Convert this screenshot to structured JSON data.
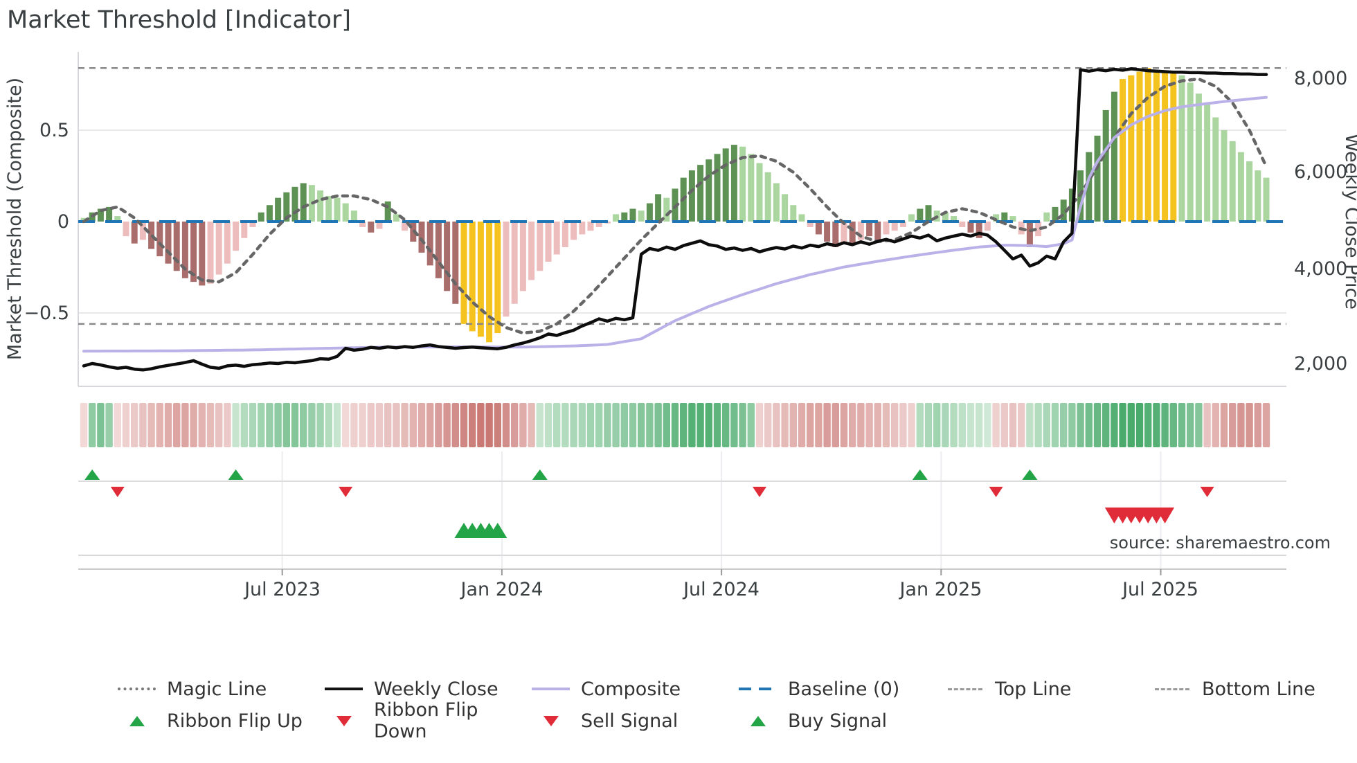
{
  "title": "Market Threshold [Indicator]",
  "source": "source: sharemaestro.com",
  "axes": {
    "left_title": "Market Threshold (Composite)",
    "right_title": "Weekly Close Price",
    "left_ticks": [
      {
        "value": 0.5,
        "label": "0.5"
      },
      {
        "value": 0.0,
        "label": "0"
      },
      {
        "value": -0.5,
        "label": "−0.5"
      }
    ],
    "right_ticks": [
      {
        "value": 8000,
        "label": "8,000"
      },
      {
        "value": 6000,
        "label": "6,000"
      },
      {
        "value": 4000,
        "label": "4,000"
      },
      {
        "value": 2000,
        "label": "2,000"
      }
    ],
    "x_ticks": [
      {
        "week": 23.5,
        "label": "Jul 2023"
      },
      {
        "week": 49.5,
        "label": "Jan 2024"
      },
      {
        "week": 75.5,
        "label": "Jul 2024"
      },
      {
        "week": 101.5,
        "label": "Jan 2025"
      },
      {
        "week": 127.5,
        "label": "Jul 2025"
      }
    ]
  },
  "legend": {
    "magic_line": "Magic Line",
    "weekly_close": "Weekly Close",
    "composite": "Composite",
    "baseline": "Baseline (0)",
    "top_line": "Top Line",
    "bottom_line": "Bottom Line",
    "ribbon_flip_up": "Ribbon Flip Up",
    "ribbon_flip_down": "Ribbon Flip Down",
    "sell_signal": "Sell Signal",
    "buy_signal": "Buy Signal"
  },
  "colors": {
    "bar_palette": {
      "dg": "#5e9254",
      "lg": "#abd6a0",
      "pk": "#edbdbd",
      "dr": "#a96d6c",
      "yl": "#f5c31f"
    },
    "ribbon_green_light": "#ecf6ec",
    "ribbon_green_dark": "#2f9e57",
    "ribbon_red_light": "#fbeeee",
    "ribbon_red_dark": "#bc5b55",
    "magic_line": "#666666",
    "weekly_close": "#0d0d0d",
    "composite": "#b9b1e8",
    "baseline": "#2076b4",
    "threshold": "#888888",
    "signal_up": "#22a447",
    "signal_down": "#e02b39",
    "grid": "#e9e9ec",
    "spine": "#d8d8dc",
    "axis_line": "#c9c9c9",
    "panel_line": "#d9d9d9"
  },
  "chart_data": {
    "type": "bar",
    "title": "Market Threshold [Indicator]",
    "xlabel": "",
    "ylabel_left": "Market Threshold (Composite)",
    "ylabel_right": "Weekly Close Price",
    "ylim_left": [
      -0.75,
      0.92
    ],
    "ylim_right": [
      1500,
      8600
    ],
    "grid": "horizontal-light",
    "legend_position": "bottom",
    "top_line_value": 0.84,
    "bottom_line_value": -0.56,
    "baseline_value": 0,
    "composite_gridlines": [
      0.5,
      -0.5
    ],
    "weeks": 141,
    "composite_bars": {
      "values": [
        0.02,
        0.05,
        0.07,
        0.08,
        0.03,
        -0.08,
        -0.12,
        -0.1,
        -0.15,
        -0.19,
        -0.23,
        -0.27,
        -0.31,
        -0.33,
        -0.35,
        -0.34,
        -0.29,
        -0.23,
        -0.16,
        -0.09,
        -0.03,
        0.05,
        0.09,
        0.13,
        0.16,
        0.19,
        0.21,
        0.2,
        0.17,
        0.14,
        0.13,
        0.1,
        0.06,
        -0.03,
        -0.06,
        -0.04,
        0.11,
        0.04,
        -0.05,
        -0.11,
        -0.17,
        -0.24,
        -0.31,
        -0.38,
        -0.45,
        -0.56,
        -0.6,
        -0.63,
        -0.66,
        -0.61,
        -0.52,
        -0.45,
        -0.38,
        -0.32,
        -0.27,
        -0.22,
        -0.18,
        -0.14,
        -0.1,
        -0.07,
        -0.05,
        -0.03,
        -0.01,
        0.04,
        0.05,
        0.07,
        0.06,
        0.1,
        0.15,
        0.13,
        0.18,
        0.24,
        0.28,
        0.31,
        0.34,
        0.37,
        0.4,
        0.42,
        0.41,
        0.37,
        0.32,
        0.27,
        0.21,
        0.15,
        0.09,
        0.04,
        -0.03,
        -0.07,
        -0.11,
        -0.14,
        -0.12,
        -0.13,
        -0.1,
        -0.08,
        -0.1,
        -0.07,
        -0.05,
        -0.03,
        0.04,
        0.07,
        0.09,
        0.06,
        0.05,
        0.03,
        -0.03,
        -0.06,
        -0.09,
        -0.05,
        0.04,
        0.05,
        0.03,
        -0.07,
        -0.14,
        -0.08,
        0.05,
        0.08,
        0.12,
        0.18,
        0.28,
        0.38,
        0.47,
        0.61,
        0.71,
        0.78,
        0.8,
        0.82,
        0.84,
        0.83,
        0.82,
        0.81,
        0.8,
        0.76,
        0.7,
        0.64,
        0.57,
        0.5,
        0.44,
        0.38,
        0.33,
        0.28,
        0.24
      ],
      "colors": [
        "lg",
        "dg",
        "dg",
        "dg",
        "lg",
        "pk",
        "dr",
        "pk",
        "dr",
        "dr",
        "dr",
        "dr",
        "dr",
        "dr",
        "dr",
        "pk",
        "pk",
        "pk",
        "pk",
        "pk",
        "pk",
        "dg",
        "dg",
        "dg",
        "dg",
        "dg",
        "dg",
        "lg",
        "lg",
        "lg",
        "lg",
        "lg",
        "lg",
        "pk",
        "dr",
        "pk",
        "dg",
        "lg",
        "pk",
        "dr",
        "dr",
        "dr",
        "dr",
        "dr",
        "dr",
        "yl",
        "yl",
        "yl",
        "yl",
        "yl",
        "pk",
        "pk",
        "pk",
        "pk",
        "pk",
        "pk",
        "pk",
        "pk",
        "pk",
        "pk",
        "pk",
        "pk",
        "pk",
        "lg",
        "dg",
        "dg",
        "lg",
        "dg",
        "dg",
        "lg",
        "dg",
        "dg",
        "dg",
        "dg",
        "dg",
        "dg",
        "dg",
        "dg",
        "lg",
        "lg",
        "lg",
        "lg",
        "lg",
        "lg",
        "lg",
        "lg",
        "pk",
        "dr",
        "dr",
        "dr",
        "pk",
        "dr",
        "pk",
        "dr",
        "dr",
        "pk",
        "pk",
        "pk",
        "lg",
        "dg",
        "dg",
        "lg",
        "lg",
        "lg",
        "pk",
        "dr",
        "dr",
        "pk",
        "lg",
        "dg",
        "lg",
        "pk",
        "dr",
        "pk",
        "lg",
        "dg",
        "dg",
        "dg",
        "dg",
        "dg",
        "dg",
        "dg",
        "dg",
        "yl",
        "yl",
        "yl",
        "yl",
        "yl",
        "yl",
        "yl",
        "lg",
        "lg",
        "lg",
        "lg",
        "lg",
        "lg",
        "lg",
        "lg",
        "lg",
        "lg",
        "lg"
      ]
    },
    "weekly_close": [
      1950,
      2000,
      1970,
      1930,
      1900,
      1920,
      1880,
      1865,
      1890,
      1930,
      1960,
      1990,
      2020,
      2060,
      1985,
      1920,
      1900,
      1950,
      1965,
      1940,
      1975,
      1990,
      2010,
      2000,
      2025,
      2015,
      2040,
      2060,
      2100,
      2090,
      2150,
      2320,
      2280,
      2300,
      2340,
      2320,
      2350,
      2330,
      2355,
      2340,
      2370,
      2390,
      2355,
      2340,
      2320,
      2335,
      2345,
      2330,
      2320,
      2310,
      2340,
      2390,
      2430,
      2480,
      2540,
      2620,
      2590,
      2650,
      2700,
      2790,
      2860,
      2940,
      2890,
      2950,
      2920,
      2960,
      4300,
      4420,
      4380,
      4450,
      4400,
      4480,
      4530,
      4580,
      4500,
      4470,
      4400,
      4430,
      4380,
      4420,
      4350,
      4400,
      4440,
      4410,
      4470,
      4430,
      4490,
      4460,
      4520,
      4480,
      4540,
      4500,
      4560,
      4510,
      4570,
      4610,
      4560,
      4620,
      4680,
      4640,
      4700,
      4580,
      4640,
      4680,
      4720,
      4680,
      4740,
      4700,
      4560,
      4380,
      4200,
      4280,
      4050,
      4120,
      4260,
      4200,
      4560,
      4740,
      8180,
      8150,
      8180,
      8160,
      8190,
      8170,
      8200,
      8180,
      8160,
      8150,
      8140,
      8130,
      8130,
      8120,
      8120,
      8110,
      8110,
      8100,
      8100,
      8090,
      8090,
      8080,
      8080
    ],
    "composite_line": [
      [
        0,
        2260
      ],
      [
        10,
        2265
      ],
      [
        20,
        2285
      ],
      [
        30,
        2325
      ],
      [
        36,
        2345
      ],
      [
        44,
        2350
      ],
      [
        52,
        2345
      ],
      [
        58,
        2370
      ],
      [
        62,
        2400
      ],
      [
        66,
        2520
      ],
      [
        70,
        2900
      ],
      [
        74,
        3200
      ],
      [
        78,
        3450
      ],
      [
        82,
        3680
      ],
      [
        86,
        3870
      ],
      [
        90,
        4030
      ],
      [
        94,
        4150
      ],
      [
        98,
        4260
      ],
      [
        102,
        4360
      ],
      [
        106,
        4450
      ],
      [
        109,
        4490
      ],
      [
        112,
        4480
      ],
      [
        114,
        4460
      ],
      [
        116,
        4520
      ],
      [
        117,
        4600
      ],
      [
        118,
        5300
      ],
      [
        119,
        5900
      ],
      [
        120,
        6250
      ],
      [
        122,
        6750
      ],
      [
        124,
        7020
      ],
      [
        126,
        7200
      ],
      [
        128,
        7320
      ],
      [
        130,
        7400
      ],
      [
        133,
        7470
      ],
      [
        136,
        7530
      ],
      [
        140,
        7600
      ]
    ],
    "magic_line": [
      [
        0,
        0.0
      ],
      [
        2,
        0.06
      ],
      [
        4,
        0.08
      ],
      [
        6,
        0.02
      ],
      [
        9,
        -0.12
      ],
      [
        12,
        -0.26
      ],
      [
        14,
        -0.32
      ],
      [
        16,
        -0.33
      ],
      [
        18,
        -0.28
      ],
      [
        20,
        -0.18
      ],
      [
        22,
        -0.07
      ],
      [
        24,
        0.02
      ],
      [
        26,
        0.08
      ],
      [
        28,
        0.12
      ],
      [
        30,
        0.14
      ],
      [
        32,
        0.14
      ],
      [
        34,
        0.12
      ],
      [
        36,
        0.08
      ],
      [
        38,
        0.01
      ],
      [
        40,
        -0.1
      ],
      [
        42,
        -0.22
      ],
      [
        44,
        -0.34
      ],
      [
        46,
        -0.44
      ],
      [
        48,
        -0.52
      ],
      [
        50,
        -0.58
      ],
      [
        52,
        -0.61
      ],
      [
        54,
        -0.6
      ],
      [
        56,
        -0.56
      ],
      [
        58,
        -0.49
      ],
      [
        60,
        -0.4
      ],
      [
        62,
        -0.3
      ],
      [
        64,
        -0.2
      ],
      [
        66,
        -0.1
      ],
      [
        68,
        -0.01
      ],
      [
        70,
        0.08
      ],
      [
        72,
        0.17
      ],
      [
        74,
        0.25
      ],
      [
        76,
        0.31
      ],
      [
        78,
        0.35
      ],
      [
        80,
        0.36
      ],
      [
        82,
        0.33
      ],
      [
        84,
        0.27
      ],
      [
        86,
        0.18
      ],
      [
        88,
        0.08
      ],
      [
        90,
        -0.01
      ],
      [
        92,
        -0.08
      ],
      [
        94,
        -0.11
      ],
      [
        96,
        -0.1
      ],
      [
        98,
        -0.06
      ],
      [
        100,
        0.0
      ],
      [
        102,
        0.05
      ],
      [
        104,
        0.07
      ],
      [
        106,
        0.05
      ],
      [
        108,
        0.01
      ],
      [
        110,
        -0.03
      ],
      [
        112,
        -0.05
      ],
      [
        114,
        -0.03
      ],
      [
        116,
        0.04
      ],
      [
        118,
        0.15
      ],
      [
        120,
        0.3
      ],
      [
        122,
        0.46
      ],
      [
        124,
        0.59
      ],
      [
        126,
        0.68
      ],
      [
        128,
        0.74
      ],
      [
        130,
        0.77
      ],
      [
        132,
        0.78
      ],
      [
        134,
        0.74
      ],
      [
        136,
        0.65
      ],
      [
        138,
        0.5
      ],
      [
        140,
        0.3
      ]
    ],
    "ribbon": [
      -0.15,
      0.5,
      0.6,
      0.45,
      -0.15,
      -0.2,
      -0.25,
      -0.3,
      -0.35,
      -0.4,
      -0.45,
      -0.5,
      -0.5,
      -0.45,
      -0.4,
      -0.35,
      -0.3,
      -0.25,
      0.2,
      0.3,
      0.35,
      0.4,
      0.45,
      0.5,
      0.55,
      0.55,
      0.5,
      0.45,
      0.4,
      0.3,
      0.2,
      -0.15,
      -0.2,
      -0.2,
      -0.25,
      -0.25,
      -0.3,
      -0.3,
      -0.35,
      -0.4,
      -0.45,
      -0.5,
      -0.55,
      -0.6,
      -0.65,
      -0.7,
      -0.75,
      -0.8,
      -0.8,
      -0.75,
      -0.65,
      -0.55,
      -0.45,
      -0.35,
      0.2,
      0.25,
      0.3,
      0.3,
      0.35,
      0.35,
      0.4,
      0.4,
      0.45,
      0.45,
      0.5,
      0.5,
      0.55,
      0.55,
      0.6,
      0.65,
      0.7,
      0.75,
      0.8,
      0.8,
      0.8,
      0.75,
      0.7,
      0.65,
      0.6,
      0.5,
      -0.2,
      -0.25,
      -0.3,
      -0.35,
      -0.4,
      -0.45,
      -0.5,
      -0.5,
      -0.55,
      -0.55,
      -0.5,
      -0.45,
      -0.45,
      -0.4,
      -0.4,
      -0.35,
      -0.3,
      -0.25,
      -0.2,
      0.3,
      0.35,
      0.4,
      0.35,
      0.3,
      0.25,
      0.2,
      0.2,
      0.15,
      -0.2,
      -0.25,
      -0.3,
      -0.25,
      0.25,
      0.3,
      0.35,
      0.4,
      0.45,
      0.5,
      0.6,
      0.65,
      0.7,
      0.75,
      0.8,
      0.85,
      0.85,
      0.85,
      0.8,
      0.8,
      0.75,
      0.7,
      0.65,
      0.6,
      0.55,
      -0.3,
      -0.4,
      -0.5,
      -0.55,
      -0.6,
      -0.6,
      -0.55,
      -0.5
    ],
    "signals": {
      "ribbon_flip_up_weeks": [
        1,
        18,
        54,
        99,
        112
      ],
      "ribbon_flip_down_weeks": [
        4,
        31,
        80,
        108,
        133
      ],
      "buy_weeks": [
        45,
        46,
        47,
        48,
        49
      ],
      "sell_weeks": [
        122,
        123,
        124,
        125,
        126,
        127,
        128
      ]
    }
  }
}
